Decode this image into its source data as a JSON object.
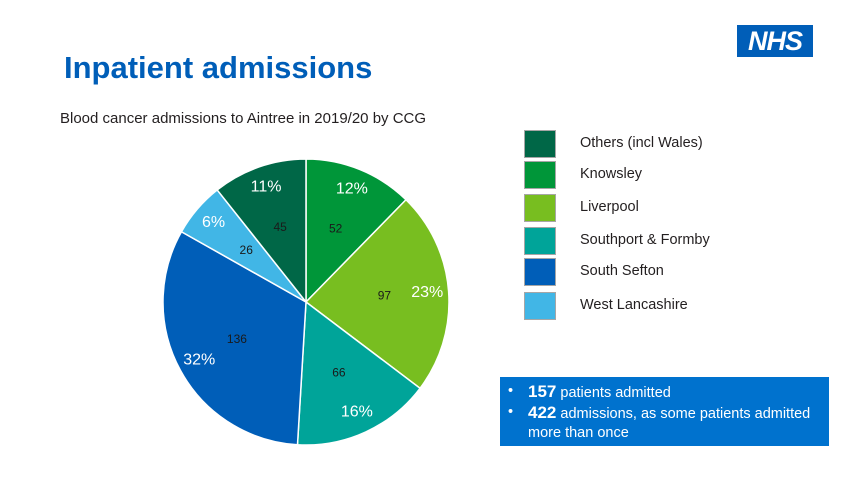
{
  "logo_text": "NHS",
  "title": "Inpatient admissions",
  "chart_data": {
    "type": "pie",
    "title": "Blood cancer admissions to Aintree in 2019/20 by CCG",
    "start": "12 o'clock",
    "direction": "clockwise",
    "slices": [
      {
        "label": "Knowsley",
        "value": 52,
        "percent_label": "12%",
        "color": "#009639"
      },
      {
        "label": "Liverpool",
        "value": 97,
        "percent_label": "23%",
        "color": "#78be20"
      },
      {
        "label": "Southport & Formby",
        "value": 66,
        "percent_label": "16%",
        "color": "#00a499"
      },
      {
        "label": "South Sefton",
        "value": 136,
        "percent_label": "32%",
        "color": "#005eb8"
      },
      {
        "label": "West Lancashire",
        "value": 26,
        "percent_label": "6%",
        "color": "#41b6e6"
      },
      {
        "label": "Others (incl Wales)",
        "value": 45,
        "percent_label": "11%",
        "color": "#006747"
      }
    ],
    "legend": {
      "placement": "right",
      "entries": [
        {
          "label": "Others (incl Wales)",
          "color": "#006747"
        },
        {
          "label": "Knowsley",
          "color": "#009639"
        },
        {
          "label": "Liverpool",
          "color": "#78be20"
        },
        {
          "label": "Southport & Formby",
          "color": "#00a499"
        },
        {
          "label": "South Sefton",
          "color": "#005eb8"
        },
        {
          "label": "West Lancashire",
          "color": "#41b6e6"
        }
      ]
    }
  },
  "info_box": {
    "bullet": "•",
    "patients_count": "157",
    "patients_text": " patients admitted",
    "admissions_count": "422",
    "admissions_text": " admissions, as some patients admitted more than once"
  }
}
